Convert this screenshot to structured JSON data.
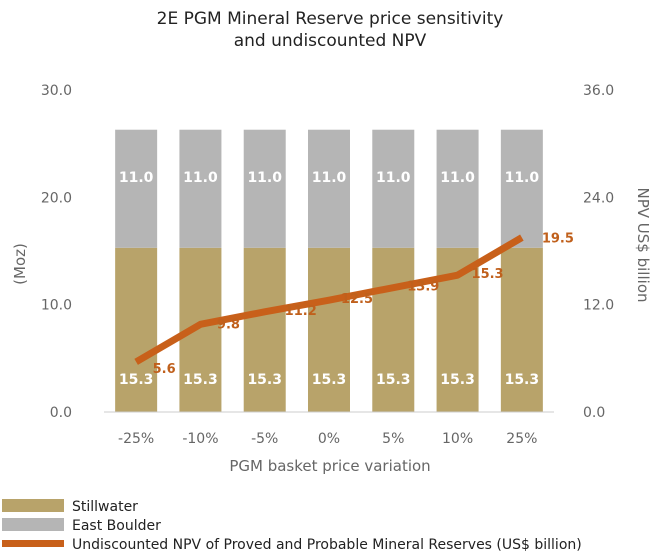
{
  "chart_data": {
    "type": "bar",
    "title": [
      "2E PGM Mineral Reserve price sensitivity",
      "and undiscounted NPV"
    ],
    "xlabel": "PGM basket price variation",
    "ylabel": "(Moz)",
    "y2label": "NPV US$ billion",
    "categories": [
      "-25%",
      "-10%",
      "-5%",
      "0%",
      "5%",
      "10%",
      "25%"
    ],
    "ylim": [
      0,
      30
    ],
    "y2lim": [
      0,
      36
    ],
    "yticks": [
      "0.0",
      "10.0",
      "20.0",
      "30.0"
    ],
    "y2ticks": [
      "0.0",
      "12.0",
      "24.0",
      "36.0"
    ],
    "series": [
      {
        "name": "Stillwater",
        "kind": "bar",
        "color": "#b8a36a",
        "values": [
          15.3,
          15.3,
          15.3,
          15.3,
          15.3,
          15.3,
          15.3
        ],
        "labels": [
          "15.3",
          "15.3",
          "15.3",
          "15.3",
          "15.3",
          "15.3",
          "15.3"
        ]
      },
      {
        "name": "East Boulder",
        "kind": "bar",
        "color": "#b5b5b5",
        "values": [
          11.0,
          11.0,
          11.0,
          11.0,
          11.0,
          11.0,
          11.0
        ],
        "labels": [
          "11.0",
          "11.0",
          "11.0",
          "11.0",
          "11.0",
          "11.0",
          "11.0"
        ]
      },
      {
        "name": "Undiscounted NPV of Proved and Probable Mineral Reserves (US$ billion)",
        "kind": "line",
        "axis": "right",
        "color": "#c8601a",
        "values": [
          5.6,
          9.8,
          11.2,
          12.5,
          13.9,
          15.3,
          19.5
        ],
        "labels": [
          "5.6",
          "9.8",
          "11.2",
          "12.5",
          "13.9",
          "15.3",
          "19.5"
        ]
      }
    ],
    "legend": "bottom-left"
  }
}
